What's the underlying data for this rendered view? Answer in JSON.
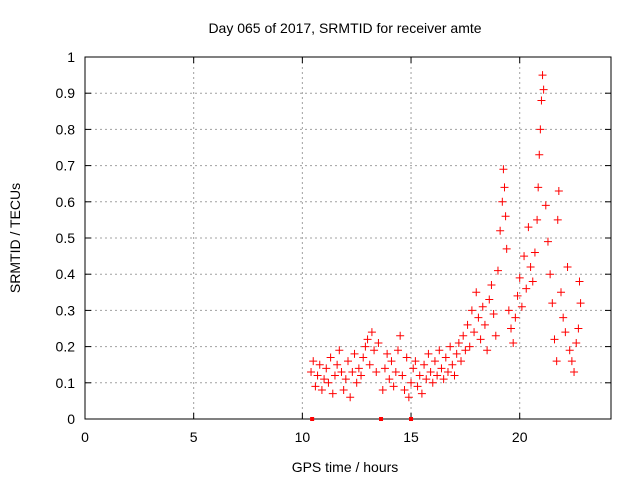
{
  "chart_data": {
    "type": "scatter",
    "title": "Day 065 of 2017, SRMTID for receiver amte",
    "xlabel": "GPS time / hours",
    "ylabel": "SRMTID / TECUs",
    "xlim": [
      0,
      24.2
    ],
    "ylim": [
      0,
      1
    ],
    "x_ticks": [
      0,
      5,
      10,
      15,
      20
    ],
    "x_tick_labels": [
      "0",
      "5",
      "10",
      "15",
      "20"
    ],
    "y_ticks": [
      0,
      0.1,
      0.2,
      0.3,
      0.4,
      0.5,
      0.6,
      0.7,
      0.8,
      0.9,
      1
    ],
    "y_tick_labels": [
      "0",
      "0.1",
      "0.2",
      "0.3",
      "0.4",
      "0.5",
      "0.6",
      "0.7",
      "0.8",
      "0.9",
      "1"
    ],
    "grid": true,
    "marker": "plus",
    "color": "#ff0000",
    "data_span_hours": [
      10.4,
      22.8
    ],
    "series": [
      {
        "points": [
          [
            10.4,
            0.13
          ],
          [
            10.5,
            0.16
          ],
          [
            10.6,
            0.09
          ],
          [
            10.7,
            0.12
          ],
          [
            10.8,
            0.15
          ],
          [
            10.9,
            0.08
          ],
          [
            11.0,
            0.11
          ],
          [
            11.1,
            0.14
          ],
          [
            11.2,
            0.1
          ],
          [
            11.3,
            0.17
          ],
          [
            11.4,
            0.07
          ],
          [
            11.5,
            0.12
          ],
          [
            11.6,
            0.15
          ],
          [
            11.7,
            0.19
          ],
          [
            11.8,
            0.13
          ],
          [
            11.9,
            0.08
          ],
          [
            12.0,
            0.11
          ],
          [
            12.1,
            0.16
          ],
          [
            12.2,
            0.06
          ],
          [
            12.3,
            0.13
          ],
          [
            12.4,
            0.18
          ],
          [
            12.5,
            0.1
          ],
          [
            12.6,
            0.14
          ],
          [
            12.7,
            0.12
          ],
          [
            12.8,
            0.17
          ],
          [
            12.9,
            0.2
          ],
          [
            13.0,
            0.22
          ],
          [
            13.1,
            0.15
          ],
          [
            13.2,
            0.24
          ],
          [
            13.3,
            0.19
          ],
          [
            13.4,
            0.13
          ],
          [
            13.5,
            0.21
          ],
          [
            13.7,
            0.08
          ],
          [
            13.8,
            0.14
          ],
          [
            13.9,
            0.18
          ],
          [
            14.0,
            0.11
          ],
          [
            14.1,
            0.16
          ],
          [
            14.2,
            0.09
          ],
          [
            14.3,
            0.13
          ],
          [
            14.4,
            0.19
          ],
          [
            14.5,
            0.23
          ],
          [
            14.6,
            0.12
          ],
          [
            14.7,
            0.08
          ],
          [
            14.8,
            0.17
          ],
          [
            14.9,
            0.06
          ],
          [
            15.0,
            0.1
          ],
          [
            15.1,
            0.14
          ],
          [
            15.2,
            0.16
          ],
          [
            15.3,
            0.09
          ],
          [
            15.4,
            0.12
          ],
          [
            15.5,
            0.07
          ],
          [
            15.6,
            0.15
          ],
          [
            15.7,
            0.11
          ],
          [
            15.8,
            0.18
          ],
          [
            15.9,
            0.13
          ],
          [
            16.0,
            0.1
          ],
          [
            16.1,
            0.16
          ],
          [
            16.2,
            0.12
          ],
          [
            16.3,
            0.19
          ],
          [
            16.4,
            0.14
          ],
          [
            16.5,
            0.11
          ],
          [
            16.6,
            0.17
          ],
          [
            16.7,
            0.13
          ],
          [
            16.8,
            0.2
          ],
          [
            16.9,
            0.15
          ],
          [
            17.0,
            0.12
          ],
          [
            17.1,
            0.18
          ],
          [
            17.2,
            0.21
          ],
          [
            17.3,
            0.16
          ],
          [
            17.4,
            0.23
          ],
          [
            17.5,
            0.19
          ],
          [
            17.6,
            0.26
          ],
          [
            17.7,
            0.2
          ],
          [
            17.8,
            0.3
          ],
          [
            17.9,
            0.24
          ],
          [
            18.0,
            0.35
          ],
          [
            18.1,
            0.28
          ],
          [
            18.2,
            0.22
          ],
          [
            18.3,
            0.31
          ],
          [
            18.4,
            0.26
          ],
          [
            18.5,
            0.19
          ],
          [
            18.6,
            0.33
          ],
          [
            18.7,
            0.37
          ],
          [
            18.8,
            0.29
          ],
          [
            18.9,
            0.23
          ],
          [
            19.0,
            0.41
          ],
          [
            19.1,
            0.52
          ],
          [
            19.2,
            0.6
          ],
          [
            19.25,
            0.69
          ],
          [
            19.3,
            0.64
          ],
          [
            19.35,
            0.56
          ],
          [
            19.4,
            0.47
          ],
          [
            19.5,
            0.3
          ],
          [
            19.6,
            0.25
          ],
          [
            19.7,
            0.21
          ],
          [
            19.8,
            0.28
          ],
          [
            19.9,
            0.34
          ],
          [
            20.0,
            0.39
          ],
          [
            20.1,
            0.31
          ],
          [
            20.2,
            0.45
          ],
          [
            20.3,
            0.36
          ],
          [
            20.4,
            0.53
          ],
          [
            20.5,
            0.42
          ],
          [
            20.6,
            0.38
          ],
          [
            20.7,
            0.46
          ],
          [
            20.8,
            0.55
          ],
          [
            20.85,
            0.64
          ],
          [
            20.9,
            0.73
          ],
          [
            20.95,
            0.8
          ],
          [
            21.0,
            0.88
          ],
          [
            21.05,
            0.95
          ],
          [
            21.1,
            0.91
          ],
          [
            21.2,
            0.59
          ],
          [
            21.3,
            0.49
          ],
          [
            21.4,
            0.4
          ],
          [
            21.5,
            0.32
          ],
          [
            21.6,
            0.22
          ],
          [
            21.7,
            0.16
          ],
          [
            21.75,
            0.55
          ],
          [
            21.8,
            0.63
          ],
          [
            21.9,
            0.35
          ],
          [
            22.0,
            0.28
          ],
          [
            22.1,
            0.24
          ],
          [
            22.2,
            0.42
          ],
          [
            22.3,
            0.19
          ],
          [
            22.4,
            0.16
          ],
          [
            22.5,
            0.13
          ],
          [
            22.6,
            0.21
          ],
          [
            22.7,
            0.25
          ],
          [
            22.75,
            0.38
          ],
          [
            22.8,
            0.32
          ]
        ]
      }
    ],
    "baseline_markers": [
      10.45,
      13.62,
      15.0
    ]
  }
}
